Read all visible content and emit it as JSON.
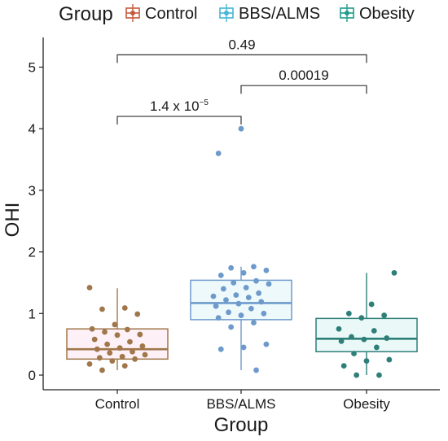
{
  "chart_data": {
    "type": "box",
    "xlabel": "Group",
    "ylabel": "OHI",
    "ylim": [
      -0.25,
      5.35
    ],
    "yticks": [
      "0",
      "1",
      "2",
      "3",
      "4",
      "5"
    ],
    "legend": {
      "title": "Group",
      "placement": "top",
      "entries": [
        {
          "label": "Control",
          "color": "#C65A3C"
        },
        {
          "label": "BBS/ALMS",
          "color": "#46B5D6"
        },
        {
          "label": "Obesity",
          "color": "#1E9C8C"
        }
      ]
    },
    "categories": [
      "Control",
      "BBS/ALMS",
      "Obesity"
    ],
    "groups": [
      {
        "name": "Control",
        "color": "#A0764A",
        "box": {
          "min": 0.08,
          "q1": 0.26,
          "median": 0.42,
          "q3": 0.75,
          "max": 1.41
        },
        "points": [
          1.42,
          1.09,
          1.07,
          0.99,
          0.82,
          0.75,
          0.74,
          0.7,
          0.66,
          0.65,
          0.58,
          0.54,
          0.5,
          0.47,
          0.44,
          0.42,
          0.38,
          0.36,
          0.33,
          0.3,
          0.28,
          0.26,
          0.23,
          0.18,
          0.15,
          0.08
        ]
      },
      {
        "name": "BBS/ALMS",
        "color": "#6E9ACB",
        "box": {
          "min": 0.08,
          "q1": 0.9,
          "median": 1.17,
          "q3": 1.54,
          "max": 1.76
        },
        "points": [
          4.0,
          3.6,
          1.76,
          1.74,
          1.7,
          1.66,
          1.62,
          1.53,
          1.5,
          1.48,
          1.42,
          1.4,
          1.33,
          1.3,
          1.28,
          1.26,
          1.22,
          1.19,
          1.16,
          1.12,
          1.08,
          1.02,
          1.0,
          0.97,
          0.93,
          0.85,
          0.78,
          0.5,
          0.45,
          0.42,
          0.08
        ]
      },
      {
        "name": "Obesity",
        "color": "#2E7F78",
        "box": {
          "min": 0.0,
          "q1": 0.38,
          "median": 0.59,
          "q3": 0.92,
          "max": 1.66
        },
        "points": [
          1.66,
          1.15,
          1.0,
          0.97,
          0.93,
          0.75,
          0.72,
          0.62,
          0.6,
          0.58,
          0.55,
          0.45,
          0.35,
          0.25,
          0.23,
          0.15,
          0.0,
          0.0
        ]
      }
    ],
    "comparisons": [
      {
        "from": "Control",
        "to": "BBS/ALMS",
        "y": 4.2,
        "label_base": "1.4 x 10",
        "label_exp": "−5"
      },
      {
        "from": "BBS/ALMS",
        "to": "Obesity",
        "y": 4.7,
        "label_base": "0.00019",
        "label_exp": ""
      },
      {
        "from": "Control",
        "to": "Obesity",
        "y": 5.2,
        "label_base": "0.49",
        "label_exp": ""
      }
    ]
  }
}
